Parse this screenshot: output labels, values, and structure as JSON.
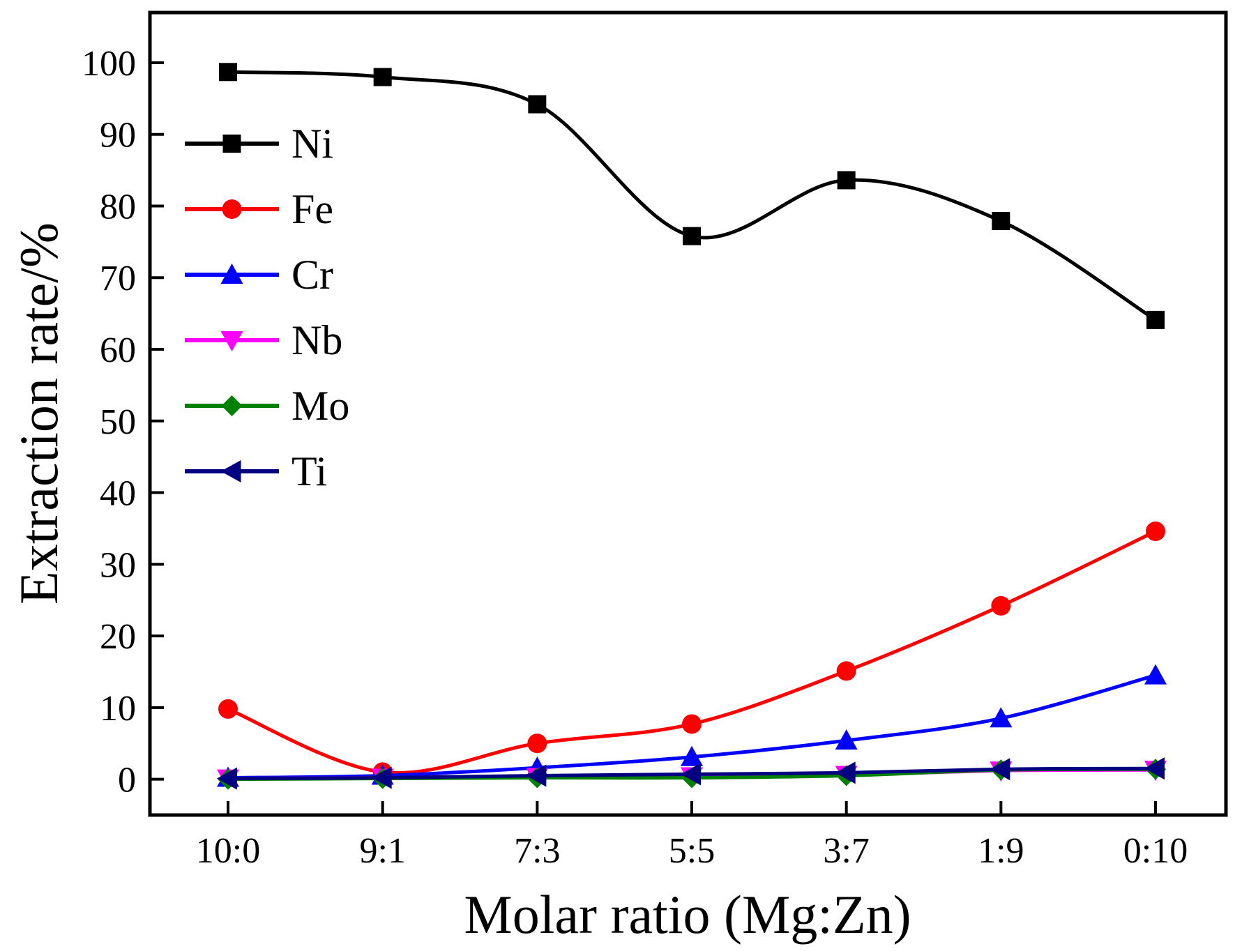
{
  "chart_data": {
    "type": "line",
    "title": "",
    "xlabel": "Molar ratio (Mg:Zn)",
    "ylabel": "Extraction rate/%",
    "categories": [
      "10:0",
      "9:1",
      "7:3",
      "5:5",
      "3:7",
      "1:9",
      "0:10"
    ],
    "ylim": [
      -5,
      107
    ],
    "yticks": [
      0,
      10,
      20,
      30,
      40,
      50,
      60,
      70,
      80,
      90,
      100
    ],
    "grid": false,
    "legend_position": "top-left",
    "series": [
      {
        "name": "Ni",
        "color": "#000000",
        "marker": "square",
        "values": [
          98.7,
          98.0,
          94.2,
          75.8,
          83.6,
          77.9,
          64.1
        ]
      },
      {
        "name": "Fe",
        "color": "#ff0000",
        "marker": "circle",
        "values": [
          9.8,
          1.0,
          5.0,
          7.7,
          15.1,
          24.2,
          34.6
        ]
      },
      {
        "name": "Cr",
        "color": "#0000ff",
        "marker": "triangle-up",
        "values": [
          0.2,
          0.5,
          1.6,
          3.1,
          5.4,
          8.5,
          14.5
        ]
      },
      {
        "name": "Nb",
        "color": "#ff00ff",
        "marker": "triangle-down",
        "values": [
          0.1,
          0.2,
          0.3,
          0.4,
          0.6,
          1.2,
          1.3
        ]
      },
      {
        "name": "Mo",
        "color": "#008000",
        "marker": "diamond",
        "values": [
          0.0,
          0.1,
          0.2,
          0.2,
          0.5,
          1.3,
          1.4
        ]
      },
      {
        "name": "Ti",
        "color": "#000080",
        "marker": "triangle-left",
        "values": [
          0.1,
          0.2,
          0.5,
          0.7,
          0.9,
          1.4,
          1.5
        ]
      }
    ]
  }
}
